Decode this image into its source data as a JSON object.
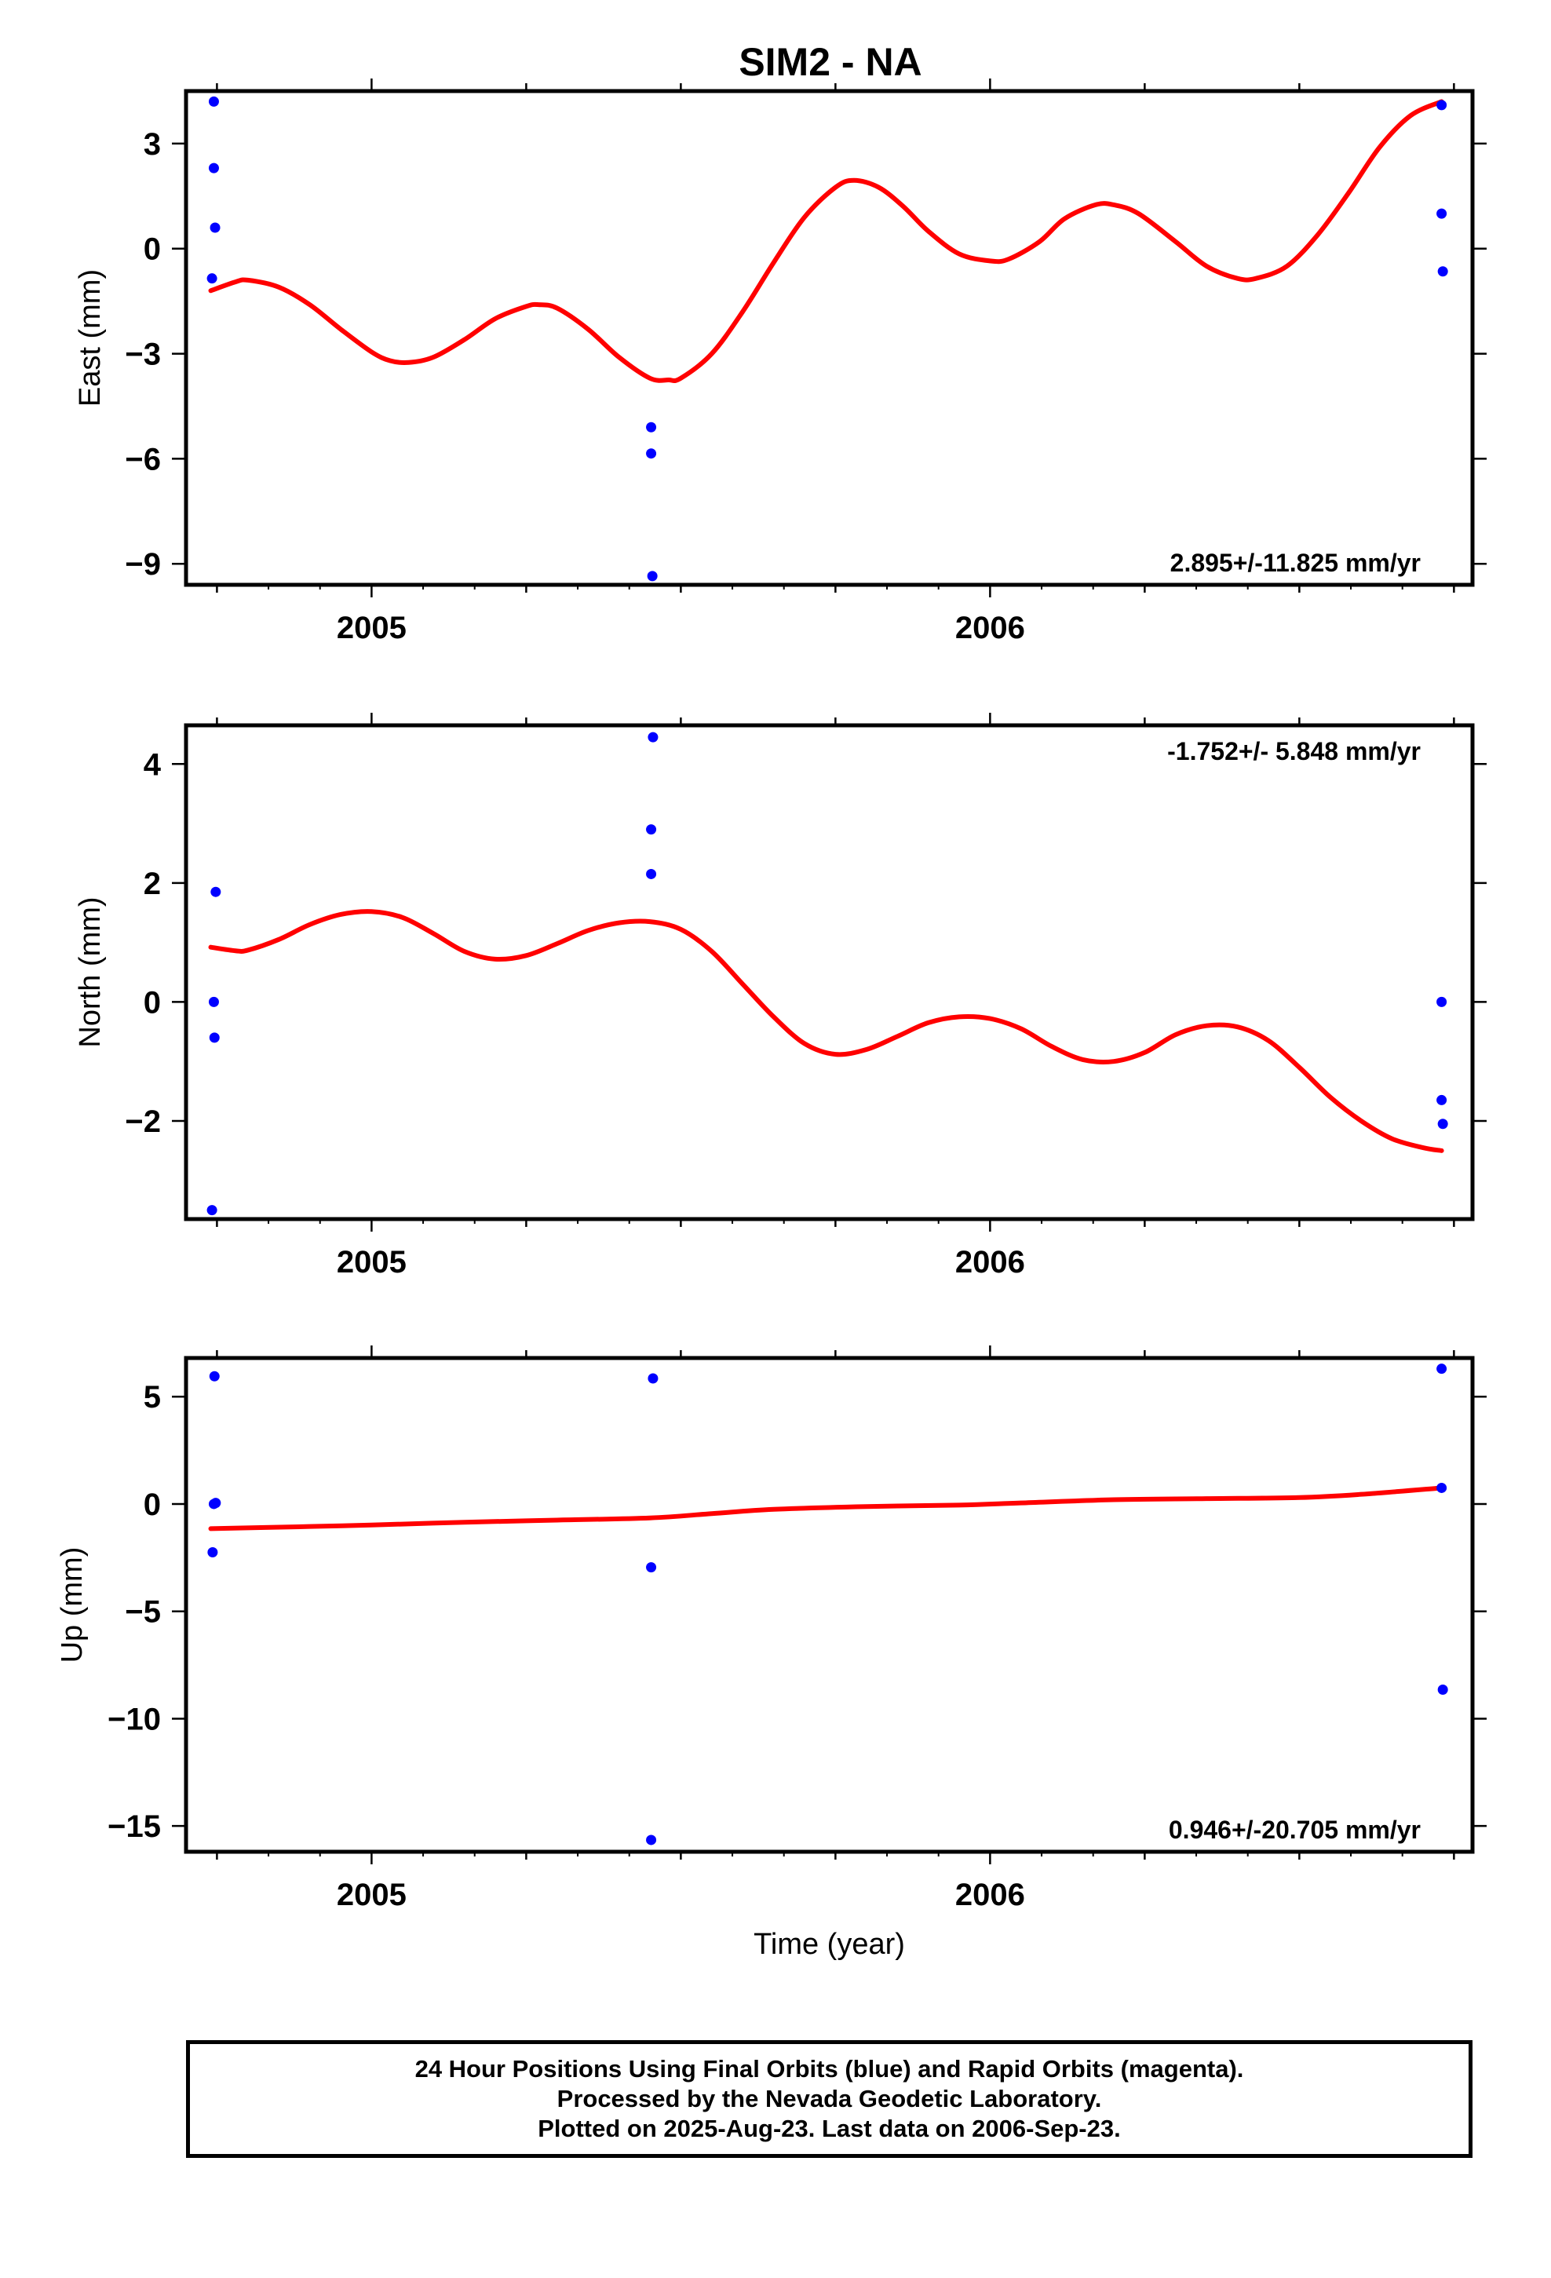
{
  "title": "SIM2 - NA",
  "colors": {
    "points": "#0000ff",
    "fit": "#ff0000",
    "frame": "#000000"
  },
  "chart_data": [
    {
      "type": "scatter",
      "name": "east",
      "ylabel": "East (mm)",
      "xlabel": "",
      "xlim": [
        2004.7,
        2006.78
      ],
      "ylim": [
        -9.6,
        4.5
      ],
      "x_ticks": [
        2005,
        2006
      ],
      "y_ticks": [
        3,
        0,
        -3,
        -6,
        -9
      ],
      "y_tick_labels": [
        "3",
        "0",
        "−3",
        "−6",
        "−9"
      ],
      "rate_label": "2.895+/-11.825 mm/yr",
      "rate_position": "bottom-right",
      "points": [
        [
          2004.745,
          4.2
        ],
        [
          2004.745,
          2.3
        ],
        [
          2004.747,
          0.6
        ],
        [
          2004.742,
          -0.85
        ],
        [
          2005.452,
          -5.1
        ],
        [
          2005.452,
          -5.85
        ],
        [
          2005.454,
          -9.35
        ],
        [
          2006.73,
          4.1
        ],
        [
          2006.73,
          1.0
        ],
        [
          2006.732,
          -0.65
        ]
      ],
      "fit": [
        [
          2004.74,
          -1.2
        ],
        [
          2004.78,
          -0.95
        ],
        [
          2004.8,
          -0.9
        ],
        [
          2004.85,
          -1.1
        ],
        [
          2004.9,
          -1.6
        ],
        [
          2004.95,
          -2.3
        ],
        [
          2005.0,
          -2.95
        ],
        [
          2005.03,
          -3.2
        ],
        [
          2005.06,
          -3.25
        ],
        [
          2005.1,
          -3.1
        ],
        [
          2005.15,
          -2.6
        ],
        [
          2005.2,
          -2.0
        ],
        [
          2005.25,
          -1.65
        ],
        [
          2005.27,
          -1.6
        ],
        [
          2005.3,
          -1.7
        ],
        [
          2005.35,
          -2.3
        ],
        [
          2005.4,
          -3.1
        ],
        [
          2005.45,
          -3.7
        ],
        [
          2005.48,
          -3.75
        ],
        [
          2005.5,
          -3.7
        ],
        [
          2005.55,
          -3.0
        ],
        [
          2005.6,
          -1.8
        ],
        [
          2005.65,
          -0.4
        ],
        [
          2005.7,
          0.9
        ],
        [
          2005.75,
          1.75
        ],
        [
          2005.78,
          1.95
        ],
        [
          2005.82,
          1.75
        ],
        [
          2005.86,
          1.2
        ],
        [
          2005.9,
          0.5
        ],
        [
          2005.95,
          -0.15
        ],
        [
          2006.0,
          -0.35
        ],
        [
          2006.03,
          -0.3
        ],
        [
          2006.08,
          0.2
        ],
        [
          2006.12,
          0.85
        ],
        [
          2006.17,
          1.25
        ],
        [
          2006.2,
          1.25
        ],
        [
          2006.24,
          1.0
        ],
        [
          2006.3,
          0.2
        ],
        [
          2006.35,
          -0.5
        ],
        [
          2006.4,
          -0.85
        ],
        [
          2006.43,
          -0.85
        ],
        [
          2006.48,
          -0.5
        ],
        [
          2006.53,
          0.4
        ],
        [
          2006.58,
          1.6
        ],
        [
          2006.63,
          2.9
        ],
        [
          2006.68,
          3.8
        ],
        [
          2006.73,
          4.2
        ]
      ]
    },
    {
      "type": "scatter",
      "name": "north",
      "ylabel": "North (mm)",
      "xlabel": "",
      "xlim": [
        2004.7,
        2006.78
      ],
      "ylim": [
        -3.65,
        4.65
      ],
      "x_ticks": [
        2005,
        2006
      ],
      "y_ticks": [
        4,
        2,
        0,
        -2
      ],
      "y_tick_labels": [
        "4",
        "2",
        "0",
        "−2"
      ],
      "rate_label": "-1.752+/- 5.848 mm/yr",
      "rate_position": "top-right",
      "points": [
        [
          2004.748,
          1.85
        ],
        [
          2004.745,
          0.0
        ],
        [
          2004.746,
          -0.6
        ],
        [
          2004.742,
          -3.5
        ],
        [
          2005.455,
          4.45
        ],
        [
          2005.452,
          2.9
        ],
        [
          2005.452,
          2.15
        ],
        [
          2006.73,
          0.0
        ],
        [
          2006.73,
          -1.65
        ],
        [
          2006.732,
          -2.05
        ]
      ],
      "fit": [
        [
          2004.74,
          0.92
        ],
        [
          2004.78,
          0.86
        ],
        [
          2004.8,
          0.87
        ],
        [
          2004.85,
          1.05
        ],
        [
          2004.9,
          1.3
        ],
        [
          2004.95,
          1.47
        ],
        [
          2005.0,
          1.52
        ],
        [
          2005.05,
          1.42
        ],
        [
          2005.1,
          1.15
        ],
        [
          2005.15,
          0.85
        ],
        [
          2005.2,
          0.72
        ],
        [
          2005.25,
          0.78
        ],
        [
          2005.3,
          0.98
        ],
        [
          2005.35,
          1.2
        ],
        [
          2005.4,
          1.33
        ],
        [
          2005.45,
          1.35
        ],
        [
          2005.5,
          1.22
        ],
        [
          2005.55,
          0.85
        ],
        [
          2005.6,
          0.3
        ],
        [
          2005.65,
          -0.25
        ],
        [
          2005.7,
          -0.7
        ],
        [
          2005.75,
          -0.88
        ],
        [
          2005.8,
          -0.8
        ],
        [
          2005.85,
          -0.58
        ],
        [
          2005.9,
          -0.35
        ],
        [
          2005.95,
          -0.25
        ],
        [
          2006.0,
          -0.28
        ],
        [
          2006.05,
          -0.45
        ],
        [
          2006.1,
          -0.75
        ],
        [
          2006.15,
          -0.97
        ],
        [
          2006.2,
          -1.0
        ],
        [
          2006.25,
          -0.85
        ],
        [
          2006.3,
          -0.55
        ],
        [
          2006.35,
          -0.4
        ],
        [
          2006.4,
          -0.42
        ],
        [
          2006.45,
          -0.65
        ],
        [
          2006.5,
          -1.1
        ],
        [
          2006.55,
          -1.6
        ],
        [
          2006.6,
          -2.0
        ],
        [
          2006.65,
          -2.3
        ],
        [
          2006.7,
          -2.45
        ],
        [
          2006.73,
          -2.5
        ]
      ]
    },
    {
      "type": "scatter",
      "name": "up",
      "ylabel": "Up (mm)",
      "xlabel": "Time (year)",
      "xlim": [
        2004.7,
        2006.78
      ],
      "ylim": [
        -16.2,
        6.8
      ],
      "x_ticks": [
        2005,
        2006
      ],
      "y_ticks": [
        5,
        0,
        -5,
        -10,
        -15
      ],
      "y_tick_labels": [
        "5",
        "0",
        "−5",
        "−10",
        "−15"
      ],
      "rate_label": "0.946+/-20.705 mm/yr",
      "rate_position": "bottom-right",
      "points": [
        [
          2004.746,
          5.95
        ],
        [
          2004.745,
          0.0
        ],
        [
          2004.748,
          0.05
        ],
        [
          2004.743,
          -2.25
        ],
        [
          2005.455,
          5.85
        ],
        [
          2005.452,
          -2.95
        ],
        [
          2005.452,
          -15.65
        ],
        [
          2006.73,
          6.3
        ],
        [
          2006.73,
          0.75
        ],
        [
          2006.732,
          -8.65
        ]
      ],
      "fit": [
        [
          2004.74,
          -1.15
        ],
        [
          2004.9,
          -1.05
        ],
        [
          2005.0,
          -0.98
        ],
        [
          2005.15,
          -0.85
        ],
        [
          2005.3,
          -0.75
        ],
        [
          2005.45,
          -0.65
        ],
        [
          2005.55,
          -0.45
        ],
        [
          2005.65,
          -0.25
        ],
        [
          2005.8,
          -0.12
        ],
        [
          2005.95,
          -0.05
        ],
        [
          2006.05,
          0.05
        ],
        [
          2006.2,
          0.2
        ],
        [
          2006.35,
          0.25
        ],
        [
          2006.5,
          0.3
        ],
        [
          2006.6,
          0.45
        ],
        [
          2006.73,
          0.75
        ]
      ]
    }
  ],
  "footer": {
    "line1": "24 Hour Positions Using Final Orbits (blue) and Rapid Orbits (magenta).",
    "line2": "Processed by the Nevada Geodetic Laboratory.",
    "line3": "Plotted on 2025-Aug-23. Last data on 2006-Sep-23."
  }
}
